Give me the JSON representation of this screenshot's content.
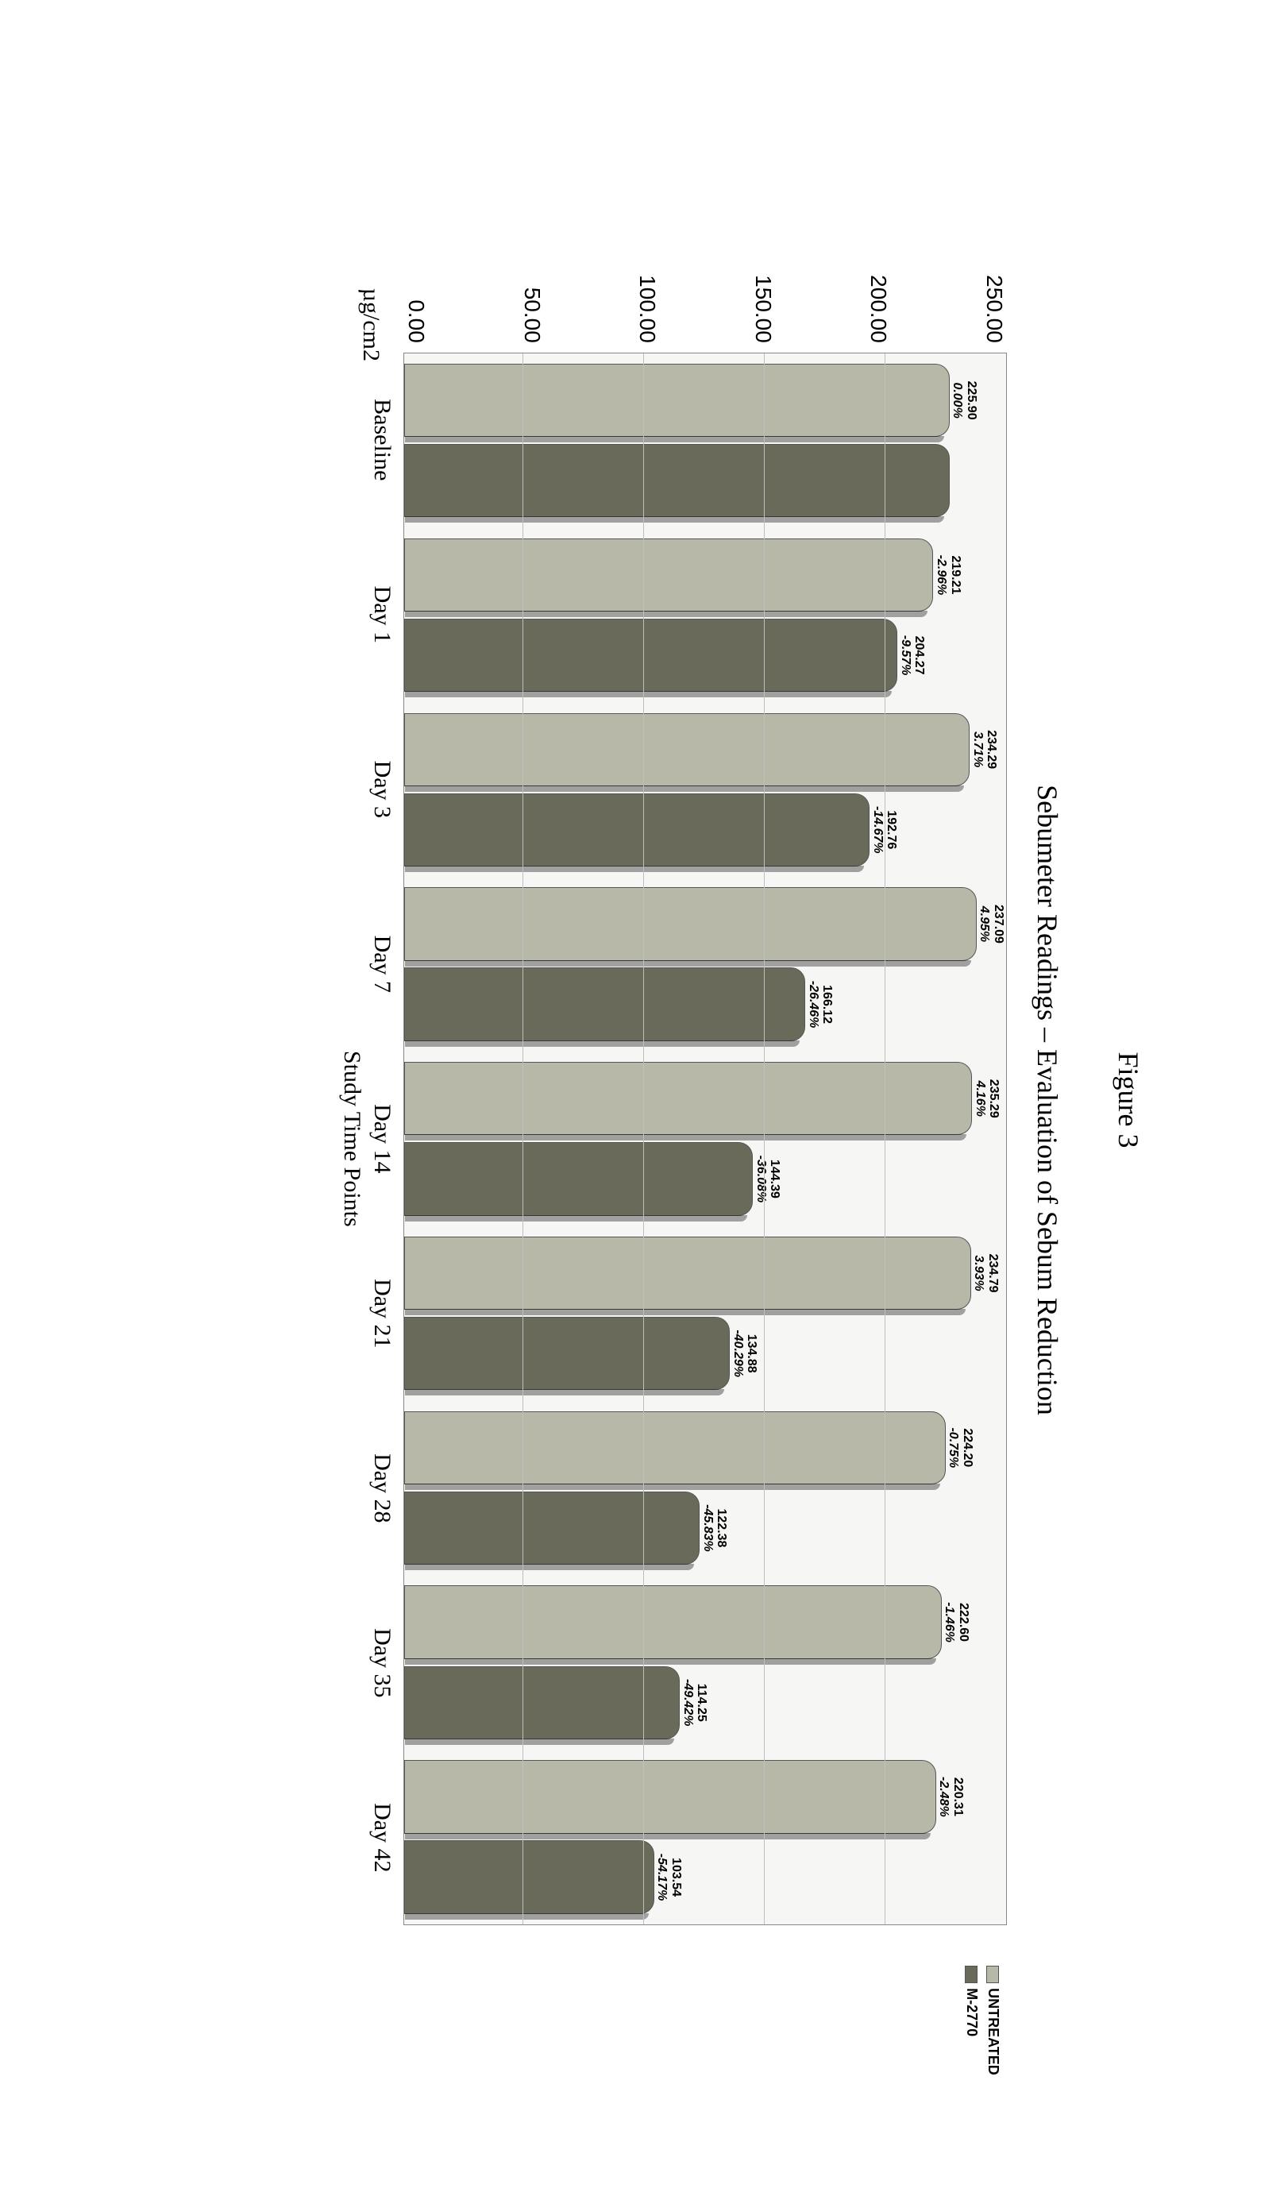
{
  "figure_label": "Figure 3",
  "chart": {
    "type": "bar",
    "title": "Sebumeter Readings – Evaluation of Sebum Reduction",
    "ylabel": "µg/cm2",
    "xlabel": "Study Time Points",
    "ylim_max": 250,
    "ytick_step": 50,
    "yticks": [
      "250.00",
      "200.00",
      "150.00",
      "100.00",
      "50.00",
      "0.00"
    ],
    "categories": [
      "Baseline",
      "Day 1",
      "Day 3",
      "Day 7",
      "Day 14",
      "Day 21",
      "Day 28",
      "Day 35",
      "Day 42"
    ],
    "series": [
      {
        "name": "UNTREATED",
        "color": "#b8b8a8"
      },
      {
        "name": "M-2770",
        "color": "#6a6a5a"
      }
    ],
    "untreated": [
      {
        "val": 225.9,
        "label": "225.90",
        "pct": "0.00%"
      },
      {
        "val": 219.21,
        "label": "219.21",
        "pct": "-2.96%"
      },
      {
        "val": 234.29,
        "label": "234.29",
        "pct": "3.71%"
      },
      {
        "val": 237.09,
        "label": "237.09",
        "pct": "4.95%"
      },
      {
        "val": 235.29,
        "label": "235.29",
        "pct": "4.16%"
      },
      {
        "val": 234.79,
        "label": "234.79",
        "pct": "3.93%"
      },
      {
        "val": 224.2,
        "label": "224.20",
        "pct": "-0.75%"
      },
      {
        "val": 222.6,
        "label": "222.60",
        "pct": "-1.46%"
      },
      {
        "val": 220.31,
        "label": "220.31",
        "pct": "-2.48%"
      }
    ],
    "treated": [
      {
        "val": 225.9,
        "label": "",
        "pct": ""
      },
      {
        "val": 204.27,
        "label": "204.27",
        "pct": "-9.57%"
      },
      {
        "val": 192.76,
        "label": "192.76",
        "pct": "-14.67%"
      },
      {
        "val": 166.12,
        "label": "166.12",
        "pct": "-26.46%"
      },
      {
        "val": 144.39,
        "label": "144.39",
        "pct": "-36.08%"
      },
      {
        "val": 134.88,
        "label": "134.88",
        "pct": "-40.29%"
      },
      {
        "val": 122.38,
        "label": "122.38",
        "pct": "-45.83%"
      },
      {
        "val": 114.25,
        "label": "114.25",
        "pct": "-49.42%"
      },
      {
        "val": 103.54,
        "label": "103.54",
        "pct": "-54.17%"
      }
    ],
    "background_color": "#f6f6f4",
    "grid_color": "#bfbfbf",
    "plot_border": "#888888",
    "label_fontsize": 16,
    "axis_fontsize": 28,
    "title_fontsize": 36
  }
}
